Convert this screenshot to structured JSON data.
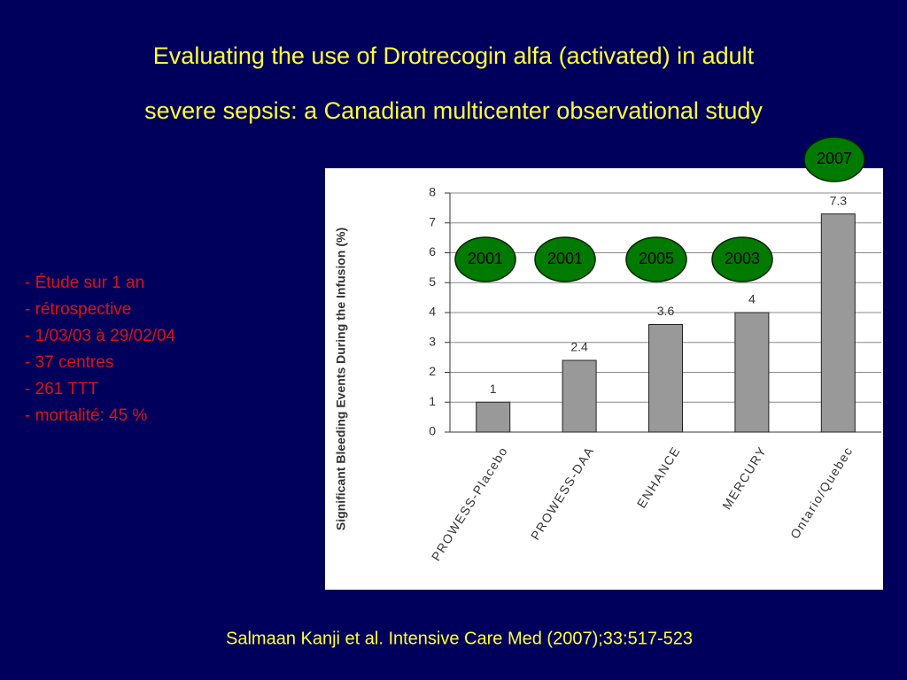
{
  "slide": {
    "title_lines": [
      "Evaluating the use of Drotrecogin alfa (activated) in adult",
      "severe sepsis: a Canadian multicenter observational study"
    ],
    "bullets": [
      "- Étude sur 1 an",
      "- rétrospective",
      "- 1/03/03 à 29/02/04",
      "- 37 centres",
      "- 261 TTT",
      "- mortalité: 45 %"
    ],
    "citation": "Salmaan Kanji  et al. Intensive Care Med (2007);33:517-523",
    "year_badges": [
      "2001",
      "2001",
      "2005",
      "2003",
      "2007"
    ]
  },
  "chart_data": {
    "type": "bar",
    "y_label": "Significant Bleeding Events During the Infusion (%)",
    "categories": [
      "PROWESS-Placebo",
      "PROWESS-DAA",
      "ENHANCE",
      "MERCURY",
      "Ontario/Quebec"
    ],
    "values": [
      1,
      2.4,
      3.6,
      4,
      7.3
    ],
    "color": "#999999",
    "ylim": [
      0,
      8
    ],
    "yticks": [
      0,
      1,
      2,
      3,
      4,
      5,
      6,
      7,
      8
    ],
    "grid": true
  }
}
